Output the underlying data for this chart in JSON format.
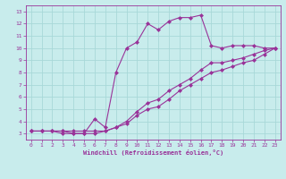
{
  "xlabel": "Windchill (Refroidissement éolien,°C)",
  "x_ticks": [
    0,
    1,
    2,
    3,
    4,
    5,
    6,
    7,
    8,
    9,
    10,
    11,
    12,
    13,
    14,
    15,
    16,
    17,
    18,
    19,
    20,
    21,
    22,
    23
  ],
  "y_ticks": [
    3,
    4,
    5,
    6,
    7,
    8,
    9,
    10,
    11,
    12,
    13
  ],
  "xlim": [
    -0.5,
    23.5
  ],
  "ylim": [
    2.5,
    13.5
  ],
  "bg_color": "#c8ecec",
  "grid_color": "#a8d8d8",
  "line_color": "#993399",
  "line1_x": [
    0,
    1,
    2,
    3,
    4,
    5,
    6,
    7,
    8,
    9,
    10,
    11,
    12,
    13,
    14,
    15,
    16,
    17,
    18,
    19,
    20,
    21,
    22,
    23
  ],
  "line1_y": [
    3.2,
    3.2,
    3.2,
    3.2,
    3.0,
    3.0,
    4.2,
    3.5,
    8.0,
    10.0,
    10.5,
    12.0,
    11.5,
    12.2,
    12.5,
    12.5,
    12.7,
    10.2,
    10.0,
    10.2,
    10.2,
    10.2,
    10.0,
    10.0
  ],
  "line2_x": [
    0,
    1,
    2,
    3,
    4,
    5,
    6,
    7,
    8,
    9,
    10,
    11,
    12,
    13,
    14,
    15,
    16,
    17,
    18,
    19,
    20,
    21,
    22,
    23
  ],
  "line2_y": [
    3.2,
    3.2,
    3.2,
    3.2,
    3.2,
    3.2,
    3.2,
    3.2,
    3.5,
    4.0,
    4.8,
    5.5,
    5.8,
    6.5,
    7.0,
    7.5,
    8.2,
    8.8,
    8.8,
    9.0,
    9.2,
    9.5,
    9.8,
    10.0
  ],
  "line3_x": [
    0,
    1,
    2,
    3,
    4,
    5,
    6,
    7,
    8,
    9,
    10,
    11,
    12,
    13,
    14,
    15,
    16,
    17,
    18,
    19,
    20,
    21,
    22,
    23
  ],
  "line3_y": [
    3.2,
    3.2,
    3.2,
    3.0,
    3.0,
    3.0,
    3.0,
    3.2,
    3.5,
    3.8,
    4.5,
    5.0,
    5.2,
    5.8,
    6.5,
    7.0,
    7.5,
    8.0,
    8.2,
    8.5,
    8.8,
    9.0,
    9.5,
    10.0
  ],
  "marker": "D",
  "markersize": 2,
  "linewidth": 0.8,
  "tick_fontsize": 4.5,
  "xlabel_fontsize": 5.0
}
